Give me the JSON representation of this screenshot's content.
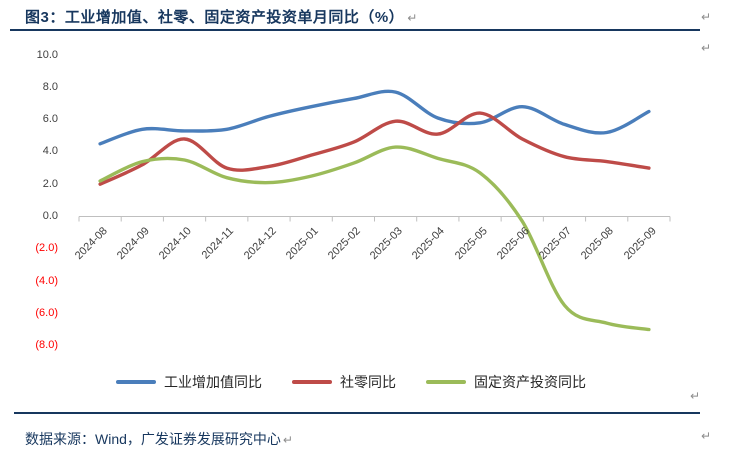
{
  "title": "图3：工业增加值、社零、固定资产投资单月同比（%）",
  "source": "数据来源：Wind，广发证券发展研究中心",
  "marks": {
    "pilcrow": "↵"
  },
  "colors": {
    "title_text": "#17375E",
    "rule": "#17375E",
    "source_text": "#17375E",
    "axis_line": "#BFBFBF",
    "tick_label": "#404040",
    "negative_tick_label": "#FF0000",
    "legend_text": "#262626",
    "pilcrow": "#8C8C8C"
  },
  "chart_data": {
    "type": "line",
    "title": "工业增加值、社零、固定资产投资单月同比（%）",
    "categories": [
      "2024-08",
      "2024-09",
      "2024-10",
      "2024-11",
      "2024-12",
      "2025-01",
      "2025-02",
      "2025-03",
      "2025-04",
      "2025-05",
      "2025-06",
      "2025-07",
      "2025-08",
      "2025-09"
    ],
    "series": [
      {
        "id": "industrial-output",
        "name": "工业增加值同比",
        "color": "#4A7EBB",
        "values": [
          4.5,
          5.4,
          5.3,
          5.4,
          6.2,
          6.8,
          7.3,
          7.7,
          6.1,
          5.8,
          6.8,
          5.7,
          5.2,
          6.5
        ]
      },
      {
        "id": "retail-sales",
        "name": "社零同比",
        "color": "#BE4B48",
        "values": [
          2.0,
          3.2,
          4.8,
          3.0,
          3.1,
          3.8,
          4.6,
          5.9,
          5.1,
          6.4,
          4.8,
          3.7,
          3.4,
          3.0
        ]
      },
      {
        "id": "fixed-asset-investment",
        "name": "固定资产投资同比",
        "color": "#9BBB59",
        "values": [
          2.2,
          3.4,
          3.5,
          2.4,
          2.1,
          2.5,
          3.3,
          4.3,
          3.6,
          2.7,
          -0.3,
          -5.5,
          -6.6,
          -7.0
        ]
      }
    ],
    "ylim": [
      -8,
      10
    ],
    "ytick_step": 2,
    "ytick_labels_top_to_bottom": [
      "10.0",
      "8.0",
      "6.0",
      "4.0",
      "2.0",
      "0.0",
      "(2.0)",
      "(4.0)",
      "(6.0)",
      "(8.0)"
    ],
    "smooth": true,
    "gridlines": false,
    "legend_position": "bottom",
    "xlabel": "",
    "ylabel": ""
  }
}
